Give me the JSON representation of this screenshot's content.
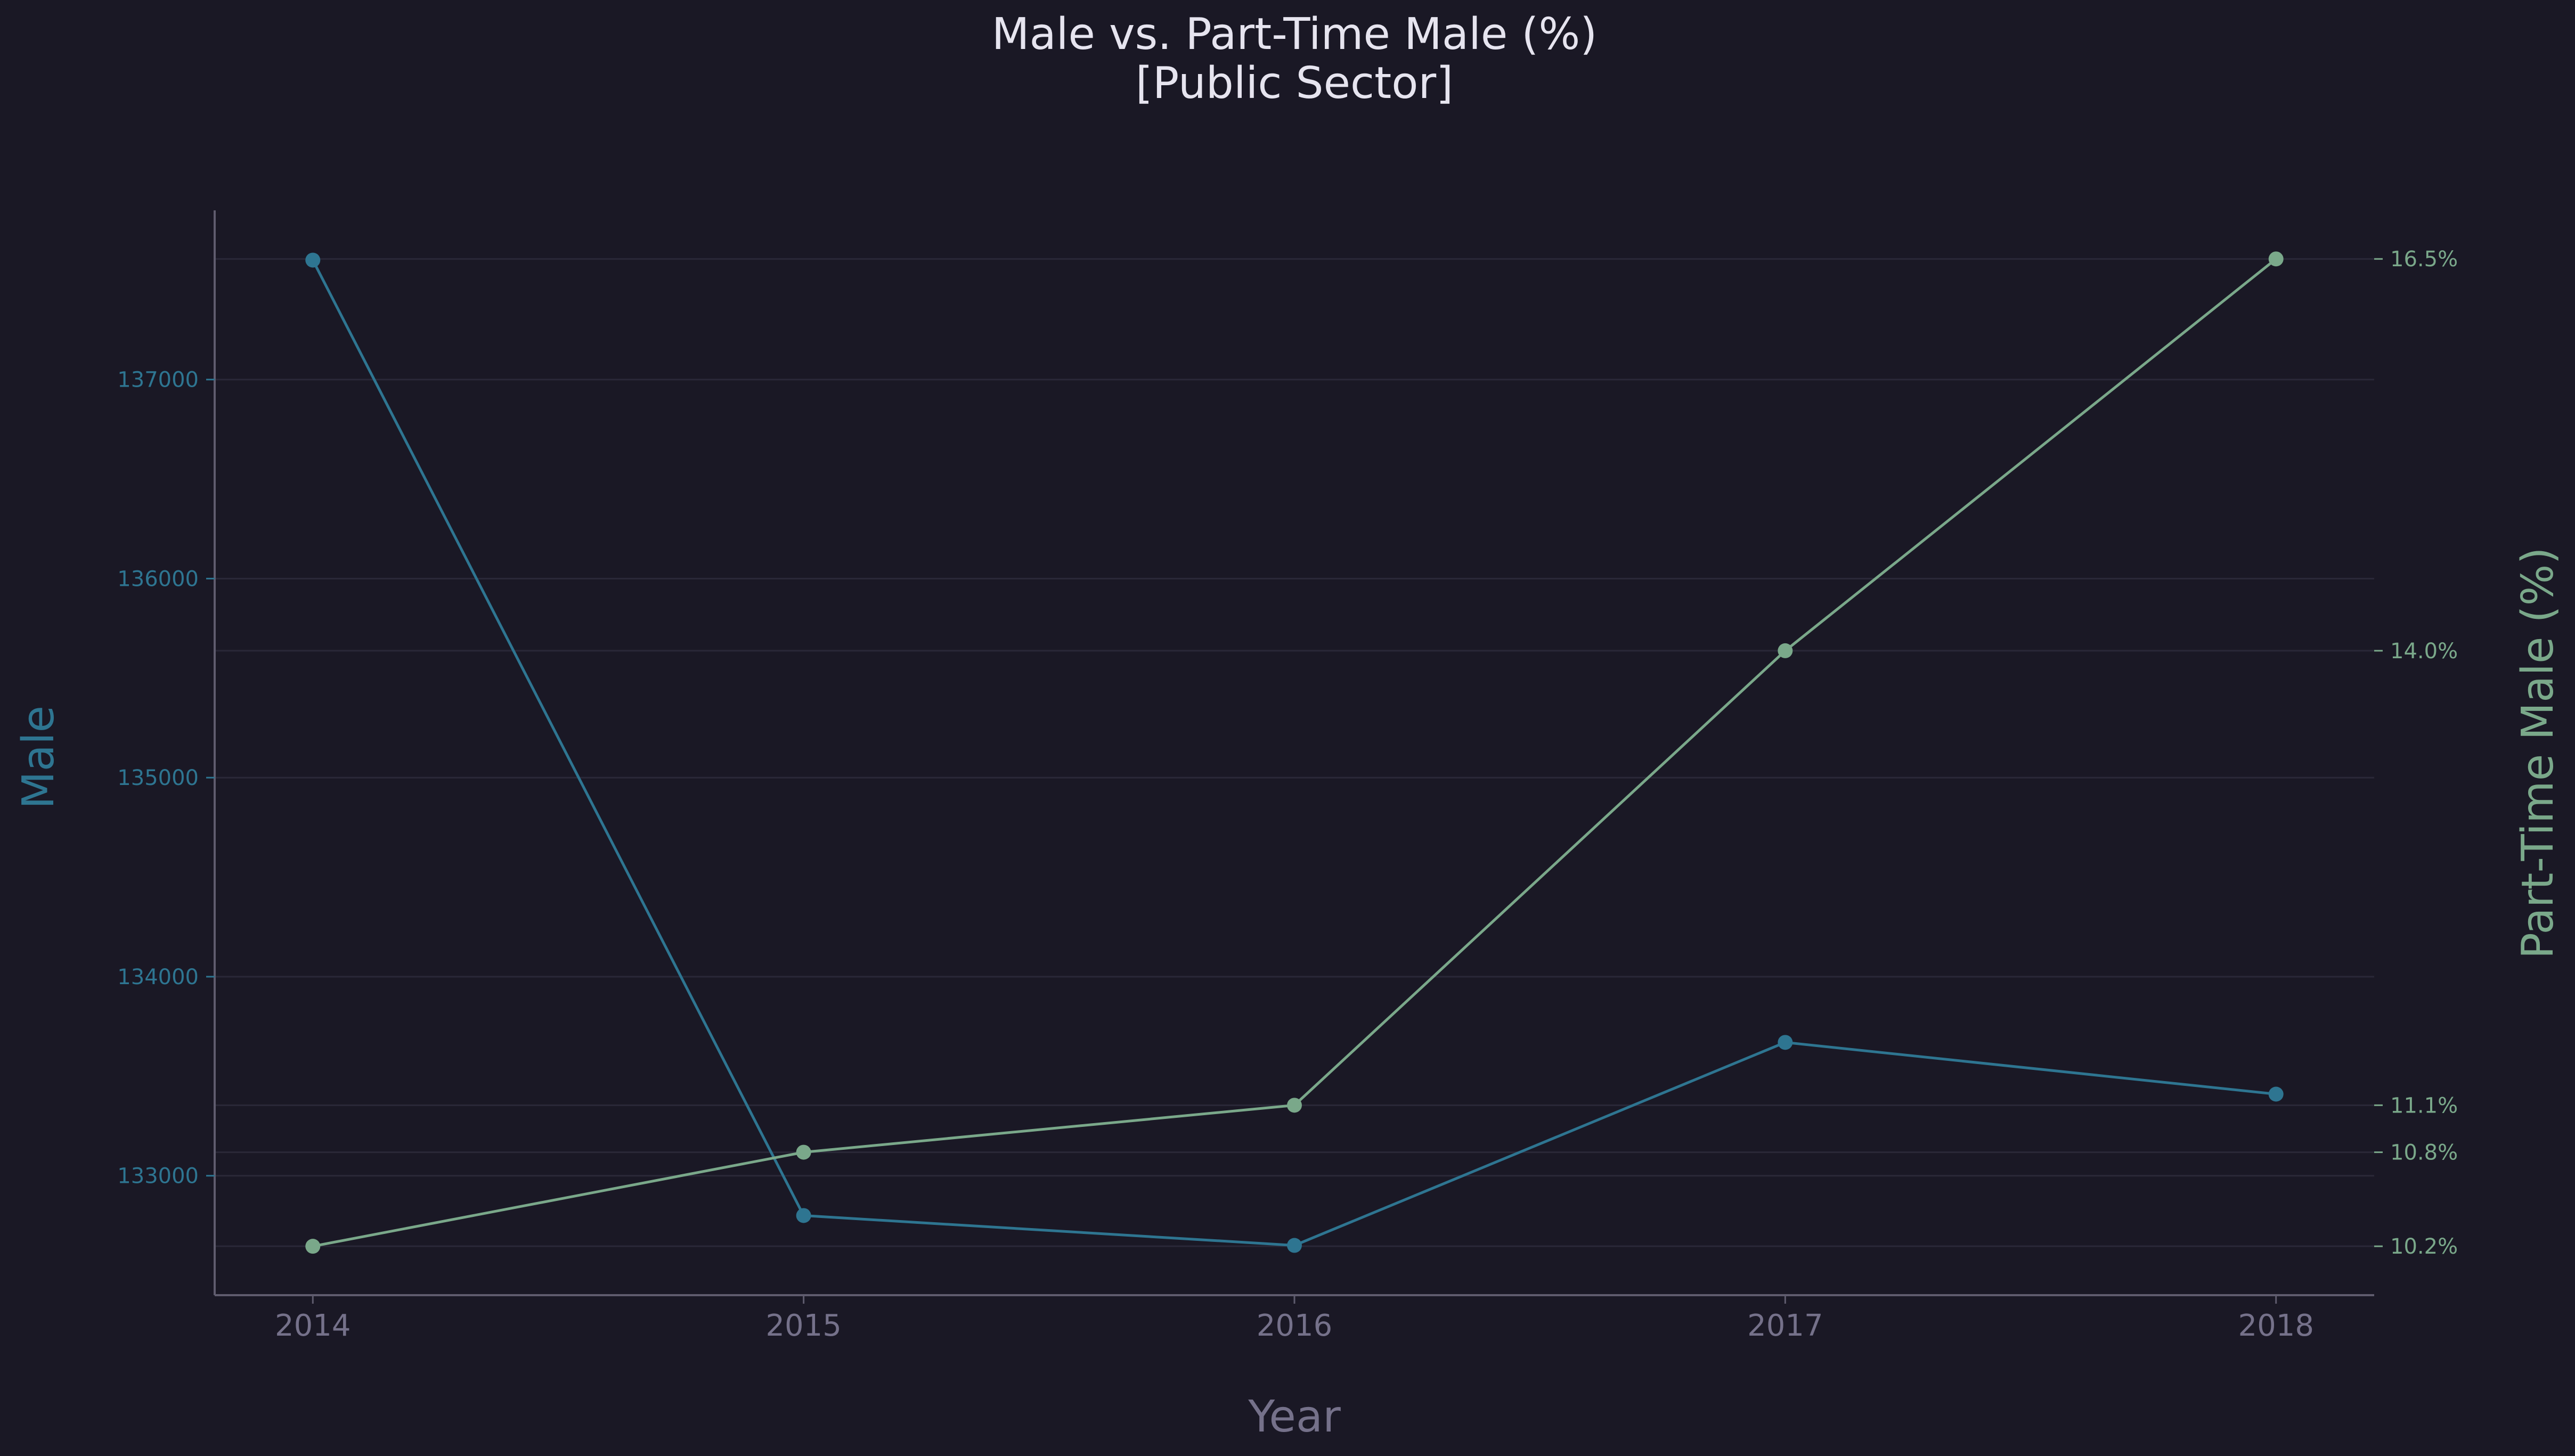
{
  "chart_data": {
    "type": "line",
    "title": "Male vs. Part-Time Male (%)",
    "subtitle": "[Public Sector]",
    "xlabel": "Year",
    "ylabel_left": "Male",
    "ylabel_right": "Part-Time Male (%)",
    "x": [
      2014,
      2015,
      2016,
      2017,
      2018
    ],
    "x_ticks": [
      "2014",
      "2015",
      "2016",
      "2017",
      "2018"
    ],
    "series": [
      {
        "name": "Male",
        "axis": "left",
        "color": "#2e7591",
        "values": [
          137600,
          132800,
          132650,
          133670,
          133410
        ]
      },
      {
        "name": "Part-Time Male (%)",
        "axis": "right",
        "color": "#7aa88a",
        "values": [
          10.2,
          10.8,
          11.1,
          14.0,
          16.5
        ]
      }
    ],
    "y_left_ticks": [
      "133000",
      "134000",
      "135000",
      "136000",
      "137000"
    ],
    "y_left_tick_values": [
      133000,
      134000,
      135000,
      136000,
      137000
    ],
    "y_left_range": [
      132400,
      137850
    ],
    "y_right_ticks": [
      "10.2%",
      "10.8%",
      "11.1%",
      "14.0%",
      "16.5%"
    ],
    "y_right_tick_values": [
      10.2,
      10.8,
      11.1,
      14.0,
      16.5
    ],
    "y_right_range": [
      9.888,
      16.81
    ],
    "x_range": [
      2013.8,
      2018.2
    ],
    "grid": true,
    "colors": {
      "background": "#1a1825",
      "axis_spine": "#5f5c6e",
      "grid": "#2a2838",
      "title": "#e6e4ef",
      "x_tick": "#75718a",
      "left_axis": "#2e7591",
      "right_axis": "#7aa88a"
    }
  }
}
